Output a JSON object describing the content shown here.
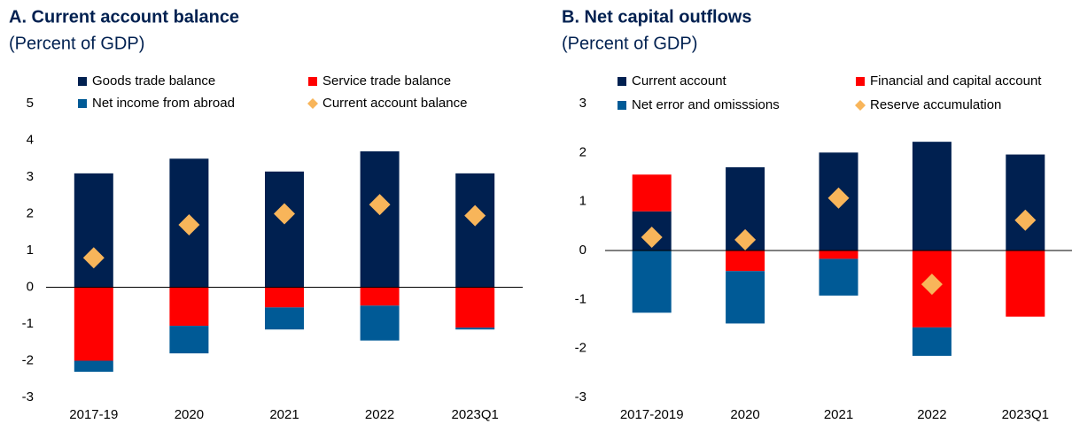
{
  "chart_data": [
    {
      "type": "bar",
      "title": "A. Current account balance",
      "subtitle": "(Percent of GDP)",
      "categories": [
        "2017-19",
        "2020",
        "2021",
        "2022",
        "2023Q1"
      ],
      "series": [
        {
          "name": "Goods trade balance",
          "color": "#002050",
          "values": [
            3.1,
            3.5,
            3.15,
            3.7,
            3.1
          ]
        },
        {
          "name": "Service trade balance",
          "color": "#ff0000",
          "values": [
            -2.0,
            -1.05,
            -0.55,
            -0.5,
            -1.1
          ]
        },
        {
          "name": "Net income from abroad",
          "color": "#005a96",
          "values": [
            -0.3,
            -0.75,
            -0.6,
            -0.95,
            -0.05
          ]
        },
        {
          "name": "Current account balance",
          "color": "#f8b55a",
          "marker": "diamond",
          "values": [
            0.8,
            1.7,
            2.0,
            2.25,
            1.95
          ]
        }
      ],
      "ylim": [
        -3,
        5
      ],
      "yticks": [
        -3,
        -2,
        -1,
        0,
        1,
        2,
        3,
        4,
        5
      ]
    },
    {
      "type": "bar",
      "title": "B. Net capital outflows",
      "subtitle": "(Percent of GDP)",
      "categories": [
        "2017-2019",
        "2020",
        "2021",
        "2022",
        "2023Q1"
      ],
      "series": [
        {
          "name": "Current account",
          "color": "#002050",
          "values": [
            0.8,
            1.7,
            2.0,
            2.22,
            1.96
          ]
        },
        {
          "name": "Financial and capital account",
          "color": "#ff0000",
          "values": [
            0.75,
            -0.42,
            -0.17,
            -1.57,
            -1.35
          ]
        },
        {
          "name": "Net error and omisssions",
          "color": "#005a96",
          "values": [
            -1.27,
            -1.07,
            -0.75,
            -0.58,
            0
          ]
        },
        {
          "name": "Reserve accumulation",
          "color": "#f8b55a",
          "marker": "diamond",
          "values": [
            0.27,
            0.22,
            1.07,
            -0.69,
            0.62
          ]
        }
      ],
      "ylim": [
        -3,
        3
      ],
      "yticks": [
        -3,
        -2,
        -1,
        0,
        1,
        2,
        3
      ]
    }
  ]
}
